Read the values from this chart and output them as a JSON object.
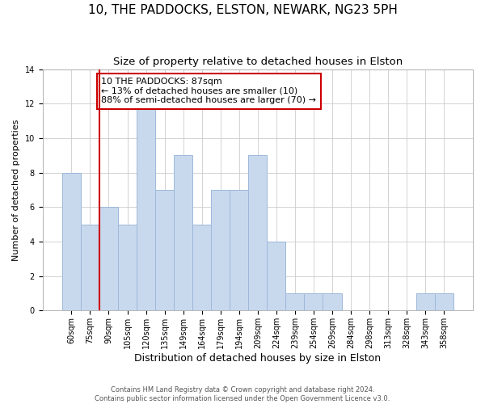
{
  "title": "10, THE PADDOCKS, ELSTON, NEWARK, NG23 5PH",
  "subtitle": "Size of property relative to detached houses in Elston",
  "xlabel": "Distribution of detached houses by size in Elston",
  "ylabel": "Number of detached properties",
  "categories": [
    "60sqm",
    "75sqm",
    "90sqm",
    "105sqm",
    "120sqm",
    "135sqm",
    "149sqm",
    "164sqm",
    "179sqm",
    "194sqm",
    "209sqm",
    "224sqm",
    "239sqm",
    "254sqm",
    "269sqm",
    "284sqm",
    "298sqm",
    "313sqm",
    "328sqm",
    "343sqm",
    "358sqm"
  ],
  "values": [
    8,
    5,
    6,
    5,
    12,
    7,
    9,
    5,
    7,
    7,
    9,
    4,
    1,
    1,
    1,
    0,
    0,
    0,
    0,
    1,
    1
  ],
  "bar_color": "#c8d9ee",
  "bar_edge_color": "#9db8d9",
  "vline_x": 1.5,
  "vline_color": "#cc0000",
  "annotation_text": "10 THE PADDOCKS: 87sqm\n← 13% of detached houses are smaller (10)\n88% of semi-detached houses are larger (70) →",
  "annotation_box_edge_color": "#cc0000",
  "annotation_box_face_color": "#ffffff",
  "ylim": [
    0,
    14
  ],
  "yticks": [
    0,
    2,
    4,
    6,
    8,
    10,
    12,
    14
  ],
  "grid_color": "#cccccc",
  "footnote": "Contains HM Land Registry data © Crown copyright and database right 2024.\nContains public sector information licensed under the Open Government Licence v3.0.",
  "title_fontsize": 11,
  "subtitle_fontsize": 9.5,
  "xlabel_fontsize": 9,
  "ylabel_fontsize": 8,
  "tick_fontsize": 7,
  "annotation_fontsize": 8,
  "footnote_fontsize": 6
}
